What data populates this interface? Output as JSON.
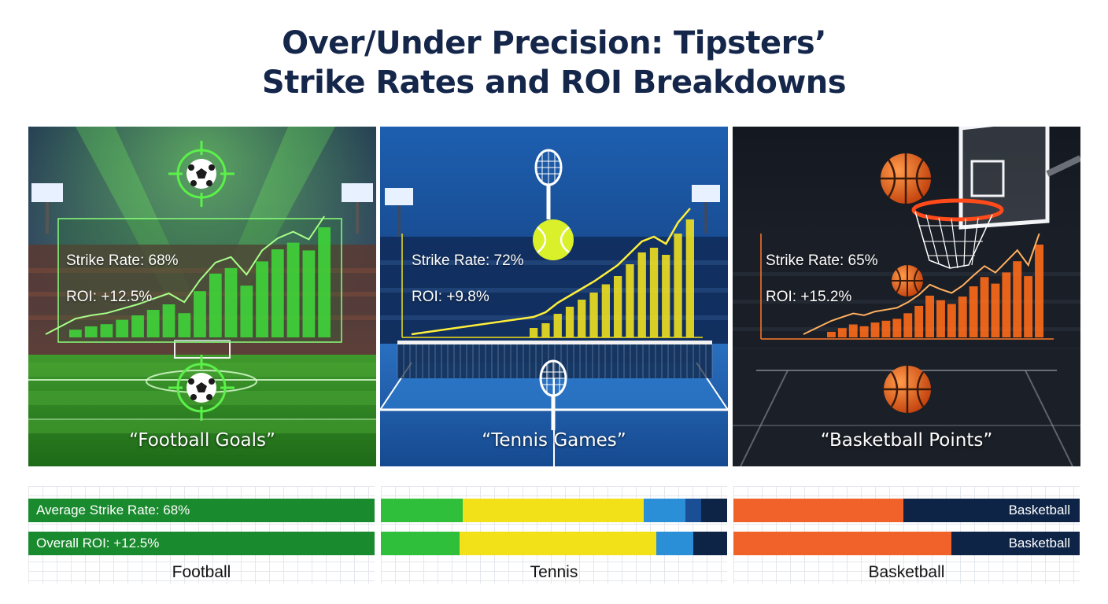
{
  "title": {
    "line1": "Over/Under Precision: Tipsters’",
    "line2": "Strike Rates and ROI Breakdowns"
  },
  "panels": [
    {
      "id": "football",
      "strike": "Strike Rate: 68%",
      "roi": "ROI: +12.5%",
      "caption": "“Football Goals”",
      "accent": "#3fd43a",
      "icons": [
        "soccer-ball-target-icon",
        "soccer-ball-target-icon"
      ],
      "bar_levels": [
        0.07,
        0.1,
        0.12,
        0.16,
        0.2,
        0.25,
        0.3,
        0.22,
        0.42,
        0.58,
        0.63,
        0.47,
        0.69,
        0.8,
        0.86,
        0.79,
        1.0
      ]
    },
    {
      "id": "tennis",
      "strike": "Strike Rate: 72%",
      "roi": "ROI: +9.8%",
      "caption": "“Tennis Games”",
      "accent": "#f0e020",
      "icons": [
        "tennis-racket-icon",
        "tennis-ball-icon",
        "tennis-racket-icon"
      ],
      "bar_levels": [
        0.08,
        0.12,
        0.2,
        0.26,
        0.32,
        0.38,
        0.45,
        0.52,
        0.62,
        0.72,
        0.76,
        0.7,
        0.88,
        1.0
      ]
    },
    {
      "id": "basketball",
      "strike": "Strike Rate: 65%",
      "roi": "ROI: +15.2%",
      "caption": "“Basketball Points”",
      "accent": "#ff6a1a",
      "icons": [
        "basketball-icon",
        "basketball-hoop-icon",
        "basketball-icon",
        "basketball-icon"
      ],
      "bar_levels": [
        0.06,
        0.1,
        0.14,
        0.12,
        0.16,
        0.18,
        0.2,
        0.26,
        0.34,
        0.45,
        0.4,
        0.36,
        0.44,
        0.55,
        0.65,
        0.58,
        0.7,
        0.82,
        0.66,
        1.0
      ]
    }
  ],
  "breakdowns": [
    {
      "label": "Football",
      "rows": [
        {
          "text": "Average Strike Rate: 68%",
          "text_side": "left",
          "segments": [
            {
              "share": 1.0,
              "color": "#1a8a2e"
            }
          ]
        },
        {
          "text": "Overall ROI: +12.5%",
          "text_side": "left",
          "segments": [
            {
              "share": 1.0,
              "color": "#1a8a2e"
            }
          ]
        }
      ]
    },
    {
      "label": "Tennis",
      "rows": [
        {
          "text": "",
          "text_side": "left",
          "segments": [
            {
              "share": 0.237,
              "color": "#2fbf3a"
            },
            {
              "share": 0.523,
              "color": "#f2e019"
            },
            {
              "share": 0.12,
              "color": "#2a8fd6"
            },
            {
              "share": 0.045,
              "color": "#1a4f95"
            },
            {
              "share": 0.075,
              "color": "#0e2447"
            }
          ]
        },
        {
          "text": "",
          "text_side": "left",
          "segments": [
            {
              "share": 0.227,
              "color": "#2fbf3a"
            },
            {
              "share": 0.568,
              "color": "#f2e019"
            },
            {
              "share": 0.107,
              "color": "#2a8fd6"
            },
            {
              "share": 0.098,
              "color": "#0e2447"
            }
          ]
        }
      ]
    },
    {
      "label": "Basketball",
      "rows": [
        {
          "text": "Basketball",
          "text_side": "right",
          "segments": [
            {
              "share": 0.49,
              "color": "#f0622a"
            },
            {
              "share": 0.51,
              "color": "#0e2447"
            }
          ]
        },
        {
          "text": "Basketball",
          "text_side": "right",
          "segments": [
            {
              "share": 0.63,
              "color": "#f0622a"
            },
            {
              "share": 0.37,
              "color": "#0e2447"
            }
          ]
        }
      ]
    }
  ]
}
